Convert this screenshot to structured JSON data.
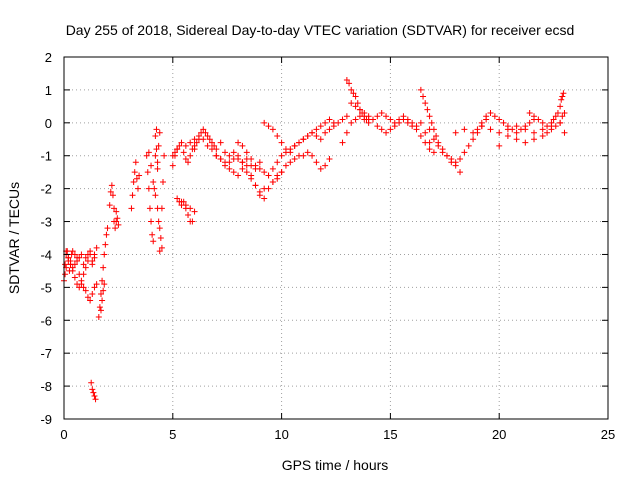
{
  "chart_data": {
    "type": "scatter",
    "title": "Day 255 of 2018, Sidereal Day-to-day VTEC variation (SDTVAR) for receiver ecsd",
    "xlabel": "GPS time / hours",
    "ylabel": "SDTVAR / TECUs",
    "xlim": [
      0,
      25
    ],
    "ylim": [
      -9,
      2
    ],
    "xticks": [
      0,
      5,
      10,
      15,
      20,
      25
    ],
    "yticks": [
      -9,
      -8,
      -7,
      -6,
      -5,
      -4,
      -3,
      -2,
      -1,
      0,
      1,
      2
    ],
    "xtick_labels": [
      "0",
      "5",
      "10",
      "15",
      "20",
      "25"
    ],
    "ytick_labels": [
      "-9",
      "-8",
      "-7",
      "-6",
      "-5",
      "-4",
      "-3",
      "-2",
      "-1",
      "0",
      "1",
      "2"
    ],
    "grid": true,
    "marker": "+",
    "color": "#ff0000",
    "series": [
      {
        "name": "SDTVAR",
        "x": [
          0.0,
          0.05,
          0.1,
          0.15,
          0.2,
          0.25,
          0.3,
          0.35,
          0.4,
          0.5,
          0.6,
          0.7,
          0.8,
          0.9,
          1.0,
          1.1,
          1.2,
          1.3,
          1.4,
          1.5,
          0.05,
          0.1,
          0.2,
          0.3,
          0.4,
          0.5,
          0.6,
          0.7,
          0.8,
          0.9,
          1.0,
          1.1,
          1.2,
          1.3,
          1.4,
          1.5,
          0.1,
          0.2,
          0.3,
          0.4,
          0.5,
          0.6,
          0.7,
          0.8,
          0.9,
          1.0,
          1.1,
          1.2,
          1.3,
          1.4,
          1.6,
          1.65,
          1.7,
          1.75,
          1.8,
          1.85,
          1.9,
          1.95,
          2.0,
          1.7,
          1.75,
          1.8,
          1.85,
          1.25,
          1.3,
          1.35,
          1.4,
          1.45,
          2.1,
          2.15,
          2.2,
          2.25,
          2.3,
          2.3,
          2.35,
          2.4,
          2.4,
          2.45,
          2.5,
          3.1,
          3.15,
          3.2,
          3.25,
          3.3,
          3.35,
          3.4,
          3.45,
          3.8,
          3.85,
          3.9,
          3.95,
          4.0,
          4.05,
          4.1,
          4.15,
          4.2,
          4.25,
          4.3,
          4.35,
          4.4,
          4.45,
          4.5,
          4.55,
          4.6,
          3.9,
          4.0,
          4.1,
          4.2,
          4.3,
          4.4,
          4.5,
          4.2,
          4.25,
          4.3,
          4.35,
          4.4,
          5.0,
          5.1,
          5.2,
          5.3,
          5.4,
          5.5,
          5.6,
          5.7,
          5.8,
          5.9,
          6.0,
          5.0,
          5.1,
          5.2,
          5.3,
          5.4,
          5.5,
          5.6,
          5.7,
          5.8,
          5.9,
          6.0,
          6.1,
          6.2,
          6.3,
          6.4,
          6.5,
          6.6,
          6.7,
          6.8,
          6.9,
          7.0,
          7.2,
          7.4,
          7.6,
          7.8,
          8.0,
          8.2,
          8.4,
          8.6,
          8.8,
          9.0,
          5.6,
          5.8,
          6.0,
          6.2,
          6.4,
          6.6,
          6.8,
          7.0,
          7.2,
          7.4,
          7.6,
          7.8,
          8.0,
          8.2,
          8.4,
          8.6,
          8.8,
          9.0,
          9.2,
          9.4,
          9.6,
          9.8,
          10.0,
          5.2,
          5.4,
          5.6,
          5.8,
          6.0,
          7.0,
          7.2,
          7.4,
          7.6,
          7.8,
          8.0,
          8.2,
          8.4,
          8.6,
          8.8,
          9.0,
          9.2,
          9.4,
          9.6,
          9.8,
          10.0,
          10.2,
          10.4,
          10.6,
          10.8,
          11.0,
          11.2,
          11.4,
          11.6,
          11.8,
          12.0,
          12.2,
          12.4,
          12.6,
          12.8,
          13.0,
          8.0,
          8.2,
          8.4,
          8.6,
          8.8,
          9.0,
          9.2,
          9.4,
          9.6,
          9.8,
          10.0,
          10.2,
          10.4,
          10.6,
          10.8,
          11.0,
          11.2,
          11.4,
          11.6,
          11.8,
          12.0,
          12.2,
          9.2,
          9.4,
          9.6,
          9.8,
          10.0,
          10.2,
          10.4,
          10.6,
          10.8,
          11.0,
          11.2,
          11.4,
          11.6,
          11.8,
          12.0,
          12.2,
          12.4,
          13.0,
          13.1,
          13.2,
          13.3,
          13.4,
          13.5,
          13.6,
          13.7,
          13.8,
          13.9,
          14.0,
          12.8,
          13.0,
          13.2,
          13.4,
          13.6,
          13.8,
          14.0,
          14.2,
          14.4,
          14.6,
          14.8,
          15.0,
          15.2,
          15.4,
          15.6,
          15.8,
          16.0,
          16.2,
          16.4,
          16.6,
          16.8,
          17.0,
          13.2,
          13.4,
          13.6,
          13.8,
          14.0,
          14.2,
          14.4,
          14.6,
          14.8,
          15.0,
          15.2,
          15.4,
          15.6,
          15.8,
          16.0,
          16.2,
          16.4,
          16.6,
          16.8,
          16.4,
          16.5,
          16.6,
          16.7,
          16.8,
          16.9,
          17.0,
          17.1,
          17.2,
          17.4,
          17.6,
          17.8,
          18.0,
          18.2,
          16.8,
          17.0,
          17.2,
          17.4,
          17.6,
          17.8,
          18.0,
          18.2,
          18.4,
          18.6,
          18.8,
          19.0,
          19.2,
          19.4,
          18.0,
          18.4,
          18.8,
          19.2,
          19.6,
          20.0,
          20.4,
          20.8,
          21.2,
          21.6,
          22.0,
          22.4,
          22.8,
          19.0,
          19.2,
          19.4,
          19.6,
          19.8,
          20.0,
          20.2,
          20.4,
          20.6,
          20.8,
          21.0,
          21.2,
          21.4,
          21.6,
          20.0,
          20.4,
          20.8,
          21.2,
          21.6,
          22.0,
          22.2,
          22.4,
          22.6,
          22.8,
          22.9,
          23.0,
          21.4,
          21.6,
          21.8,
          22.0,
          22.2,
          22.4,
          22.5,
          22.6,
          22.7,
          22.8,
          22.85,
          22.9,
          22.95,
          23.0
        ],
        "y": [
          -4.8,
          -4.3,
          -4.0,
          -3.9,
          -4.1,
          -4.5,
          -4.2,
          -4.0,
          -3.9,
          -4.0,
          -4.2,
          -4.1,
          -4.0,
          -4.3,
          -4.1,
          -4.0,
          -3.9,
          -4.2,
          -4.0,
          -3.8,
          -4.6,
          -4.4,
          -4.2,
          -4.3,
          -4.4,
          -4.3,
          -4.1,
          -4.6,
          -4.9,
          -5.0,
          -5.1,
          -5.3,
          -5.4,
          -5.2,
          -5.0,
          -4.9,
          -3.9,
          -4.1,
          -4.3,
          -4.5,
          -4.7,
          -4.9,
          -5.0,
          -4.8,
          -4.6,
          -4.4,
          -4.2,
          -4.0,
          -4.3,
          -4.1,
          -5.9,
          -5.6,
          -5.2,
          -4.8,
          -4.4,
          -4.0,
          -3.7,
          -3.4,
          -3.2,
          -5.7,
          -5.4,
          -5.1,
          -4.9,
          -7.9,
          -8.1,
          -8.2,
          -8.3,
          -8.4,
          -2.5,
          -2.1,
          -1.9,
          -2.2,
          -2.6,
          -3.0,
          -3.2,
          -3.0,
          -2.7,
          -2.9,
          -3.1,
          -2.6,
          -2.2,
          -1.8,
          -1.5,
          -1.2,
          -1.7,
          -2.0,
          -1.6,
          -1.0,
          -1.5,
          -2.0,
          -2.6,
          -3.0,
          -3.4,
          -3.6,
          -2.0,
          -1.0,
          -0.2,
          -1.4,
          -3.0,
          -3.9,
          -3.5,
          -2.6,
          -1.8,
          -1.0,
          -0.9,
          -1.3,
          -1.8,
          -2.2,
          -2.6,
          -3.2,
          -3.8,
          -0.4,
          -0.8,
          -1.2,
          -0.7,
          -0.3,
          -1.3,
          -1.0,
          -0.8,
          -0.7,
          -0.6,
          -0.9,
          -1.1,
          -1.2,
          -1.0,
          -0.8,
          -0.7,
          -1.0,
          -0.9,
          -0.8,
          -2.4,
          -2.5,
          -2.4,
          -2.6,
          -2.8,
          -3.0,
          -3.0,
          -0.8,
          -0.6,
          -0.5,
          -0.3,
          -0.2,
          -0.3,
          -0.4,
          -0.5,
          -0.6,
          -0.7,
          -0.8,
          -0.6,
          -0.9,
          -1.2,
          -1.1,
          -1.0,
          -1.2,
          -1.1,
          -1.3,
          -1.4,
          -1.2,
          -0.7,
          -0.6,
          -0.5,
          -0.4,
          -0.5,
          -0.7,
          -0.8,
          -1.0,
          -1.1,
          -1.3,
          -1.4,
          -1.5,
          -1.6,
          -1.4,
          -1.5,
          -1.7,
          -1.9,
          -2.1,
          -2.3,
          -2.0,
          -1.8,
          -1.6,
          -1.5,
          -2.3,
          -2.4,
          -2.5,
          -2.6,
          -2.7,
          -1.0,
          -1.1,
          -1.2,
          -1.0,
          -0.9,
          -1.1,
          -1.2,
          -1.3,
          -1.6,
          -1.9,
          -2.2,
          -2.0,
          -1.6,
          -1.4,
          -1.2,
          -1.0,
          -0.9,
          -0.8,
          -0.7,
          -0.6,
          -0.5,
          -0.4,
          -0.3,
          -0.4,
          -0.5,
          -0.3,
          -0.2,
          -0.1,
          0.0,
          0.1,
          0.2,
          -0.6,
          -0.7,
          -0.9,
          -1.1,
          -1.3,
          -1.4,
          -1.5,
          -1.6,
          -1.8,
          -1.7,
          -1.5,
          -1.3,
          -1.2,
          -1.1,
          -1.0,
          -1.0,
          -0.9,
          -1.0,
          -1.2,
          -1.4,
          -1.3,
          -1.1,
          0.0,
          -0.1,
          -0.2,
          -0.4,
          -0.6,
          -0.8,
          -0.9,
          -0.7,
          -0.6,
          -0.5,
          -0.4,
          -0.3,
          -0.2,
          -0.1,
          0.0,
          0.1,
          0.0,
          1.3,
          1.2,
          1.0,
          0.9,
          0.8,
          0.6,
          0.4,
          0.3,
          0.2,
          0.1,
          0.1,
          -0.6,
          -0.3,
          0.0,
          0.1,
          0.2,
          0.1,
          0.0,
          0.1,
          0.2,
          0.3,
          0.2,
          0.1,
          0.0,
          0.1,
          0.2,
          0.1,
          0.0,
          -0.1,
          0.0,
          -0.3,
          -0.6,
          -0.9,
          0.6,
          0.5,
          0.4,
          0.3,
          0.2,
          0.1,
          -0.1,
          -0.2,
          -0.3,
          -0.2,
          -0.1,
          0.0,
          0.1,
          0.0,
          -0.1,
          -0.2,
          -0.4,
          -0.6,
          -0.8,
          1.0,
          0.8,
          0.6,
          0.4,
          0.2,
          0.0,
          -0.2,
          -0.4,
          -0.6,
          -0.8,
          -1.0,
          -1.2,
          -1.3,
          -1.5,
          -0.2,
          -0.5,
          -0.7,
          -0.9,
          -1.0,
          -1.1,
          -1.2,
          -1.1,
          -0.9,
          -0.7,
          -0.5,
          -0.3,
          -0.1,
          0.1,
          -0.3,
          -0.2,
          -0.3,
          -0.1,
          -0.2,
          -0.3,
          -0.2,
          -0.1,
          -0.2,
          -0.3,
          -0.2,
          -0.1,
          0.0,
          -0.2,
          0.0,
          0.2,
          0.3,
          0.2,
          0.1,
          0.0,
          -0.1,
          -0.2,
          -0.3,
          -0.2,
          -0.1,
          0.0,
          0.1,
          -0.7,
          -0.4,
          -0.5,
          -0.6,
          -0.5,
          -0.4,
          -0.3,
          -0.2,
          -0.1,
          0.0,
          0.2,
          0.3,
          0.3,
          0.2,
          0.1,
          0.0,
          -0.1,
          0.0,
          0.1,
          0.2,
          0.3,
          0.5,
          0.7,
          0.8,
          0.9,
          -0.3
        ]
      }
    ]
  }
}
